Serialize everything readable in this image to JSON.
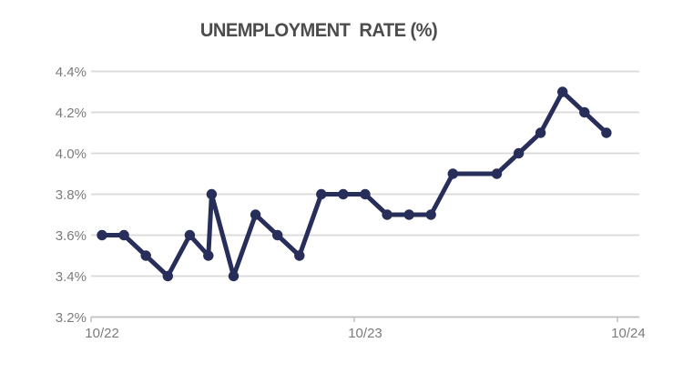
{
  "chart_data": {
    "type": "line",
    "title": "UNEMPLOYMENT  RATE (%)",
    "colors": {
      "series": "#272e5a",
      "gridline": "#d9d9d9",
      "axis": "#bfbfbf",
      "tick_label": "#7b7b7b",
      "title": "#4c4c4c"
    },
    "y_axis": {
      "labels": [
        "4.4%",
        "4.2%",
        "4.0%",
        "3.8%",
        "3.6%",
        "3.4%",
        "3.2%"
      ],
      "min": 3.2,
      "max": 4.4,
      "step": 0.2,
      "grid": true
    },
    "x_axis": {
      "labels": [
        "10/22",
        "10/23",
        "10/24"
      ],
      "label_boundaries": [
        0,
        12,
        24
      ],
      "slots": 25
    },
    "points": [
      {
        "m": 0,
        "v": 3.6
      },
      {
        "m": 1,
        "v": 3.6
      },
      {
        "m": 2,
        "v": 3.5
      },
      {
        "m": 3,
        "v": 3.4
      },
      {
        "m": 4,
        "v": 3.6
      },
      {
        "m": 4.85,
        "v": 3.5
      },
      {
        "m": 5,
        "v": 3.8
      },
      {
        "m": 6,
        "v": 3.4
      },
      {
        "m": 7,
        "v": 3.7
      },
      {
        "m": 8,
        "v": 3.6
      },
      {
        "m": 9,
        "v": 3.5
      },
      {
        "m": 10,
        "v": 3.8
      },
      {
        "m": 11,
        "v": 3.8
      },
      {
        "m": 12,
        "v": 3.8
      },
      {
        "m": 13,
        "v": 3.7
      },
      {
        "m": 14,
        "v": 3.7
      },
      {
        "m": 15,
        "v": 3.7
      },
      {
        "m": 16,
        "v": 3.9
      },
      {
        "m": 18,
        "v": 3.9
      },
      {
        "m": 19,
        "v": 4.0
      },
      {
        "m": 20,
        "v": 4.1
      },
      {
        "m": 21,
        "v": 4.3
      },
      {
        "m": 22,
        "v": 4.2
      },
      {
        "m": 23,
        "v": 4.1
      }
    ]
  }
}
